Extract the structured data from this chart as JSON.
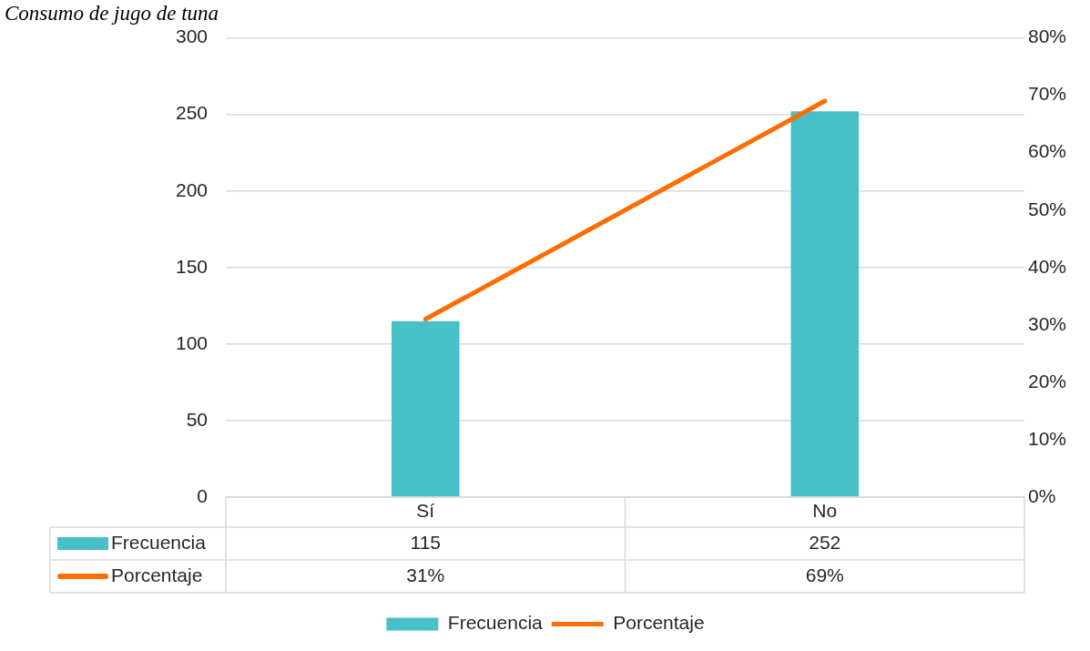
{
  "chart_data": {
    "type": "bar",
    "title": "Consumo de jugo de tuna",
    "categories": [
      "Sí",
      "No"
    ],
    "series": [
      {
        "name": "Frecuencia",
        "color": "#48c0c8",
        "values": [
          115,
          252
        ],
        "value_labels": [
          "115",
          "252"
        ]
      },
      {
        "name": "Porcentaje",
        "type": "line",
        "axis": "y2",
        "color": "#ff6d00",
        "values": [
          31,
          69
        ],
        "value_labels": [
          "31%",
          "69%"
        ]
      }
    ],
    "ylim": [
      0,
      300
    ],
    "yticks": [
      0,
      50,
      100,
      150,
      200,
      250,
      300
    ],
    "y2lim": [
      0,
      80
    ],
    "y2ticks": [
      {
        "value": 0,
        "label": "0%"
      },
      {
        "value": 10,
        "label": "10%"
      },
      {
        "value": 20,
        "label": "20%"
      },
      {
        "value": 30,
        "label": "30%"
      },
      {
        "value": 40,
        "label": "40%"
      },
      {
        "value": 50,
        "label": "50%"
      },
      {
        "value": 60,
        "label": "60%"
      },
      {
        "value": 70,
        "label": "70%"
      },
      {
        "value": 80,
        "label": "80%"
      }
    ],
    "grid": "y",
    "legend": "bottom"
  }
}
